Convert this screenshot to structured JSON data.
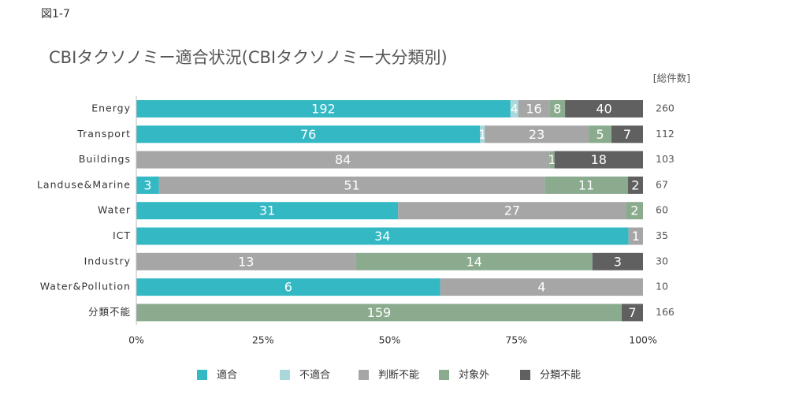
{
  "chart_data": {
    "type": "stacked100bar",
    "figure_label": "図1-7",
    "title": "CBIタクソノミー適合状況(CBIタクソノミー大分類別)",
    "totals_label": "[総件数]",
    "categories": [
      "Energy",
      "Transport",
      "Buildings",
      "Landuse&Marine",
      "Water",
      "ICT",
      "Industry",
      "Water&Pollution",
      "分類不能"
    ],
    "series": [
      {
        "name": "適合",
        "color": "#33b8c4",
        "values": [
          192,
          76,
          0,
          3,
          31,
          34,
          0,
          6,
          0
        ]
      },
      {
        "name": "不適合",
        "color": "#a8d8dc",
        "values": [
          4,
          1,
          0,
          0,
          0,
          0,
          0,
          0,
          0
        ]
      },
      {
        "name": "判断不能",
        "color": "#a6a6a6",
        "values": [
          16,
          23,
          84,
          51,
          27,
          1,
          13,
          4,
          0
        ]
      },
      {
        "name": "対象外",
        "color": "#8aab8e",
        "values": [
          8,
          5,
          1,
          11,
          2,
          0,
          14,
          0,
          159
        ]
      },
      {
        "name": "分類不能",
        "color": "#606060",
        "values": [
          40,
          7,
          18,
          2,
          0,
          0,
          3,
          0,
          7
        ]
      }
    ],
    "totals": [
      260,
      112,
      103,
      67,
      60,
      35,
      30,
      10,
      166
    ],
    "xlim": [
      0,
      100
    ],
    "xticks": [
      {
        "value": 0,
        "label": "0%"
      },
      {
        "value": 25,
        "label": "25%"
      },
      {
        "value": 50,
        "label": "50%"
      },
      {
        "value": 75,
        "label": "75%"
      },
      {
        "value": 100,
        "label": "100%"
      }
    ]
  }
}
